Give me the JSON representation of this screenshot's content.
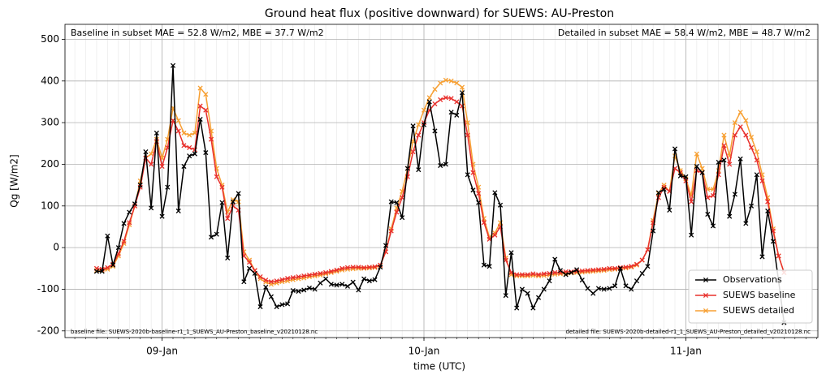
{
  "chart_data": {
    "type": "line",
    "title": "Ground heat flux (positive downward) for SUEWS: AU-Preston",
    "x_label": "time (UTC)",
    "y_label": "Qg [W/m2]",
    "annotations": [
      "Baseline in subset MAE = 52.8 W/m2, MBE = 37.7 W/m2",
      "Detailed in subset MAE = 58.4 W/m2, MBE = 48.7 W/m2",
      "baseline file: SUEWS-2020b-baseline-r1_1_SUEWS_AU-Preston_baseline_v20210128.nc",
      "detailed file: SUEWS-2020b-detailed-r1_1_SUEWS_AU-Preston_detailed_v20210128.nc"
    ],
    "x": [
      186,
      186.5,
      187,
      187.5,
      188,
      188.5,
      189,
      189.5,
      190,
      190.5,
      191,
      191.5,
      192,
      192.5,
      193,
      193.5,
      194,
      194.5,
      195,
      195.5,
      196,
      196.5,
      197,
      197.5,
      198,
      198.5,
      199,
      199.5,
      200,
      200.5,
      201,
      201.5,
      202,
      202.5,
      203,
      203.5,
      204,
      204.5,
      205,
      205.5,
      206,
      206.5,
      207,
      207.5,
      208,
      208.5,
      209,
      209.5,
      210,
      210.5,
      211,
      211.5,
      212,
      212.5,
      213,
      213.5,
      214,
      214.5,
      215,
      215.5,
      216,
      216.5,
      217,
      217.5,
      218,
      218.5,
      219,
      219.5,
      220,
      220.5,
      221,
      221.5,
      222,
      222.5,
      223,
      223.5,
      224,
      224.5,
      225,
      225.5,
      226,
      226.5,
      227,
      227.5,
      228,
      228.5,
      229,
      229.5,
      230,
      230.5,
      231,
      231.5,
      232,
      232.5,
      233,
      233.5,
      234,
      234.5,
      235,
      235.5,
      236,
      236.5,
      237,
      237.5,
      238,
      238.5,
      239,
      239.5,
      240,
      240.5,
      241,
      241.5,
      242,
      242.5,
      243,
      243.5,
      244,
      244.5,
      245,
      245.5,
      246,
      246.5,
      247,
      247.5,
      248,
      248.5,
      249
    ],
    "series": [
      {
        "name": "Observations",
        "color": "#000000",
        "values": [
          -57,
          -57,
          28,
          -42,
          0,
          58,
          85,
          105,
          150,
          230,
          95,
          275,
          75,
          145,
          437,
          88,
          195,
          220,
          225,
          308,
          228,
          25,
          32,
          108,
          -25,
          110,
          130,
          -82,
          -50,
          -62,
          -142,
          -95,
          -118,
          -142,
          -137,
          -135,
          -103,
          -105,
          -102,
          -97,
          -100,
          -85,
          -75,
          -88,
          -90,
          -88,
          -93,
          -83,
          -102,
          -75,
          -80,
          -77,
          -47,
          5,
          110,
          108,
          72,
          190,
          292,
          187,
          295,
          350,
          280,
          197,
          200,
          325,
          318,
          372,
          175,
          138,
          108,
          -42,
          -45,
          132,
          102,
          -115,
          -12,
          -145,
          -100,
          -110,
          -145,
          -120,
          -100,
          -80,
          -28,
          -55,
          -65,
          -60,
          -53,
          -78,
          -98,
          -110,
          -98,
          -100,
          -98,
          -92,
          -50,
          -92,
          -100,
          -80,
          -62,
          -45,
          40,
          132,
          140,
          90,
          237,
          172,
          170,
          30,
          195,
          180,
          80,
          52,
          205,
          210,
          75,
          128,
          213,
          58,
          100,
          175,
          -22,
          88,
          15,
          -80,
          -180
        ]
      },
      {
        "name": "SUEWS baseline",
        "color": "#e8302c",
        "values": [
          -50,
          -52,
          -48,
          -40,
          -15,
          15,
          60,
          100,
          145,
          215,
          200,
          255,
          195,
          240,
          305,
          280,
          245,
          240,
          235,
          340,
          330,
          260,
          170,
          145,
          70,
          100,
          90,
          -20,
          -35,
          -55,
          -70,
          -78,
          -82,
          -80,
          -77,
          -74,
          -72,
          -70,
          -68,
          -66,
          -64,
          -62,
          -60,
          -57,
          -54,
          -50,
          -48,
          -47,
          -47,
          -48,
          -47,
          -46,
          -42,
          -10,
          40,
          85,
          120,
          170,
          230,
          270,
          300,
          330,
          345,
          355,
          360,
          358,
          350,
          340,
          270,
          180,
          130,
          60,
          20,
          30,
          50,
          -30,
          -60,
          -65,
          -65,
          -65,
          -63,
          -65,
          -63,
          -62,
          -60,
          -60,
          -58,
          -58,
          -57,
          -56,
          -55,
          -54,
          -53,
          -52,
          -50,
          -50,
          -48,
          -47,
          -45,
          -40,
          -30,
          -5,
          60,
          120,
          145,
          135,
          190,
          180,
          160,
          110,
          185,
          180,
          120,
          125,
          175,
          245,
          200,
          270,
          290,
          270,
          240,
          210,
          160,
          110,
          40,
          -20,
          -60
        ]
      },
      {
        "name": "SUEWS detailed",
        "color": "#f7a033",
        "values": [
          -55,
          -55,
          -52,
          -45,
          -20,
          10,
          55,
          100,
          160,
          215,
          225,
          260,
          215,
          260,
          335,
          305,
          275,
          270,
          275,
          383,
          368,
          280,
          190,
          150,
          85,
          115,
          110,
          -10,
          -30,
          -55,
          -75,
          -83,
          -88,
          -85,
          -82,
          -80,
          -77,
          -75,
          -73,
          -70,
          -68,
          -66,
          -63,
          -60,
          -57,
          -54,
          -52,
          -51,
          -50,
          -50,
          -49,
          -48,
          -43,
          -10,
          45,
          95,
          135,
          190,
          255,
          295,
          330,
          360,
          380,
          395,
          402,
          400,
          395,
          385,
          300,
          200,
          145,
          70,
          25,
          35,
          60,
          -25,
          -65,
          -68,
          -68,
          -68,
          -67,
          -68,
          -67,
          -66,
          -64,
          -63,
          -62,
          -61,
          -60,
          -59,
          -58,
          -57,
          -56,
          -55,
          -53,
          -52,
          -50,
          -49,
          -47,
          -42,
          -30,
          -5,
          65,
          130,
          150,
          135,
          220,
          185,
          165,
          125,
          225,
          190,
          140,
          140,
          185,
          270,
          220,
          300,
          325,
          305,
          265,
          230,
          175,
          120,
          45,
          -20,
          -60
        ]
      }
    ],
    "xlim": [
      183.1,
      252.1
    ],
    "xticks": [
      {
        "value": 192,
        "label": "09-Jan"
      },
      {
        "value": 216,
        "label": "10-Jan"
      },
      {
        "value": 240,
        "label": "11-Jan"
      }
    ],
    "xminorticks": [
      184,
      185,
      186,
      187,
      188,
      189,
      190,
      191,
      192,
      193,
      194,
      195,
      196,
      197,
      198,
      199,
      200,
      201,
      202,
      203,
      204,
      205,
      206,
      207,
      208,
      209,
      210,
      211,
      212,
      213,
      214,
      215,
      216,
      217,
      218,
      219,
      220,
      221,
      222,
      223,
      224,
      225,
      226,
      227,
      228,
      229,
      230,
      231,
      232,
      233,
      234,
      235,
      236,
      237,
      238,
      239,
      240,
      241,
      242,
      243,
      244,
      245,
      246,
      247,
      248,
      249,
      250,
      251,
      252
    ],
    "ylim": [
      -216,
      536
    ],
    "yticks": [
      -200,
      -100,
      0,
      100,
      200,
      300,
      400,
      500
    ],
    "grid": true,
    "marker": "x",
    "legend": "lower right"
  }
}
